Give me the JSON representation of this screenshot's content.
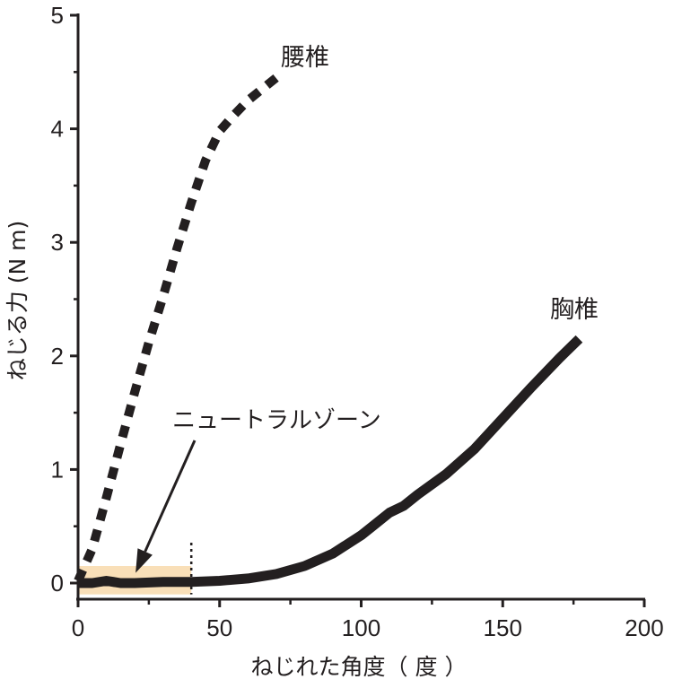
{
  "chart_data": {
    "type": "line",
    "xlabel": "ねじれた角度（ 度 ）",
    "ylabel": "ねじる力 (N m)",
    "xlim": [
      0,
      200
    ],
    "ylim": [
      0,
      5
    ],
    "x_ticks": [
      0,
      50,
      100,
      150,
      200
    ],
    "y_ticks": [
      0,
      1,
      2,
      3,
      4,
      5
    ],
    "grid": false,
    "colors": {
      "line": "#231f20",
      "zone_fill": "#f9dfb8"
    },
    "series": [
      {
        "name": "腰椎",
        "style": "dashed",
        "x": [
          0,
          5,
          10,
          15,
          20,
          25,
          30,
          35,
          40,
          45,
          50,
          55,
          60,
          65,
          70
        ],
        "y": [
          0.02,
          0.3,
          0.75,
          1.22,
          1.68,
          2.12,
          2.52,
          2.95,
          3.35,
          3.72,
          3.98,
          4.12,
          4.25,
          4.35,
          4.45
        ]
      },
      {
        "name": "胸椎",
        "style": "solid",
        "x": [
          0,
          5,
          10,
          15,
          20,
          30,
          40,
          50,
          60,
          70,
          80,
          90,
          100,
          105,
          110,
          115,
          120,
          130,
          140,
          150,
          160,
          170,
          177
        ],
        "y": [
          0.0,
          0.0,
          0.02,
          0.0,
          0.0,
          0.01,
          0.01,
          0.02,
          0.04,
          0.08,
          0.15,
          0.26,
          0.42,
          0.52,
          0.62,
          0.68,
          0.78,
          0.96,
          1.18,
          1.45,
          1.72,
          1.98,
          2.15
        ]
      }
    ],
    "annotations": [
      {
        "text": "ニュートラルゾーン",
        "x_range": [
          0,
          40
        ],
        "y_range": [
          -0.1,
          0.15
        ],
        "arrow_to": [
          20,
          0.05
        ]
      }
    ]
  }
}
